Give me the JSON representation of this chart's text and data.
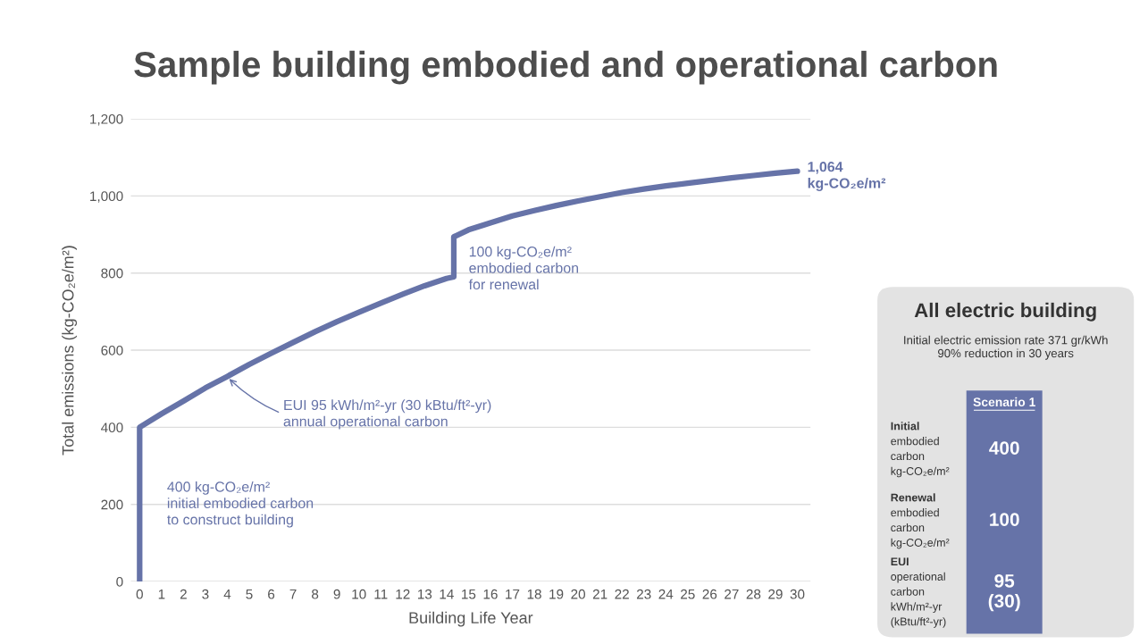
{
  "chart_data": [
    {
      "type": "line",
      "title": "Sample building embodied and operational carbon",
      "xlabel": "Building Life Year",
      "ylabel": "Total emissions (kg-CO₂e/m²)",
      "series": [
        {
          "color": "#6673a8",
          "x": [
            0,
            0,
            1,
            2,
            3,
            4,
            5,
            6,
            7,
            8,
            9,
            10,
            11,
            12,
            13,
            14,
            14.33,
            14.33,
            15,
            16,
            17,
            18,
            19,
            20,
            21,
            22,
            23,
            24,
            25,
            26,
            27,
            28,
            29,
            30
          ],
          "values": [
            0,
            400,
            435,
            468,
            502,
            532,
            563,
            592,
            620,
            648,
            674,
            698,
            722,
            745,
            767,
            786,
            790,
            894,
            912,
            930,
            948,
            962,
            975,
            987,
            998,
            1009,
            1018,
            1026,
            1033,
            1040,
            1047,
            1053,
            1059,
            1064
          ]
        }
      ],
      "xlim": [
        -0.4,
        30.6
      ],
      "xticks": [
        0,
        1,
        2,
        3,
        4,
        5,
        6,
        7,
        8,
        9,
        10,
        11,
        12,
        13,
        14,
        15,
        16,
        17,
        18,
        19,
        20,
        21,
        22,
        23,
        24,
        25,
        26,
        27,
        28,
        29,
        30
      ],
      "ylim": [
        0,
        1200
      ],
      "yticks": [
        0,
        {
          "value": 200,
          "label": "200"
        },
        400,
        600,
        800,
        {
          "value": 1000,
          "label": "1,000"
        },
        {
          "value": 1200,
          "label": "1,200"
        }
      ],
      "grid": "y",
      "line_style": "solid",
      "marker": "none",
      "annotations": [
        {
          "text": "1,064\nkg-CO₂e/m²",
          "x": 30,
          "y": 1064
        },
        {
          "text": "100 kg-CO₂e/m²\nembodied carbon\nfor renewal",
          "x": 14.33,
          "y": 842
        },
        {
          "text": "EUI 95 kWh/m²-yr (30 kBtu/ft²-yr)\nannual operational carbon",
          "x": 4,
          "y": 530
        },
        {
          "text": "400 kg-CO₂e/m²\ninitial embodied carbon\nto construct building",
          "x": 0,
          "y": 200
        }
      ]
    },
    {
      "type": "other",
      "title": "All electric building",
      "subtitle": "Initial electric emission rate 371 gr/kWh\n90% reduction in 30 years",
      "annotations": [
        "Scenario 1",
        "Initial\nembodied\ncarbon\nkg-CO₂e/m²",
        "400",
        "Renewal\nembodied\ncarbon\nkg-CO₂e/m²",
        "100",
        "EUI\noperational\ncarbon\nkWh/m²-yr\n(kBtu/ft²-yr)",
        "95\n(30)"
      ]
    }
  ]
}
